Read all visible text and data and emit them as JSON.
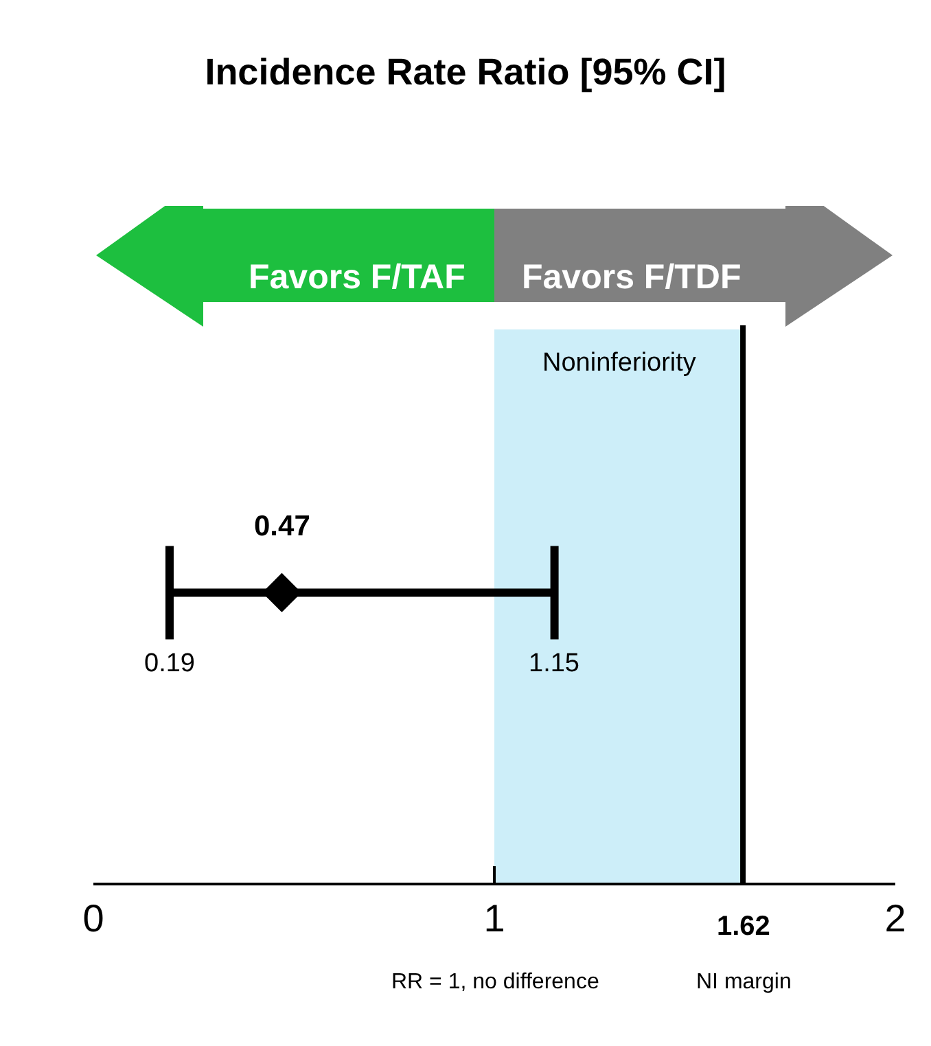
{
  "chart_data": {
    "type": "scatter",
    "title": "Incidence Rate Ratio [95% CI]",
    "orientation": "horizontal",
    "categories": [
      null
    ],
    "values": [
      0.47
    ],
    "color": "#000000",
    "marker": "diamond",
    "errors": [
      [
        0.19,
        1.15
      ]
    ],
    "value_labels": [
      "0.47"
    ],
    "xlim": [
      0,
      2
    ],
    "xticks": [
      0,
      1,
      2
    ],
    "tick_labels": "x",
    "grid": false,
    "legend": false,
    "ref_lines": [
      {
        "axis": "x",
        "value": 1.62,
        "label": "1.62",
        "color": "#000000"
      }
    ],
    "bands": [
      {
        "axis": "x",
        "from": 1,
        "to": 1.62,
        "label": "Noninferiority",
        "color": "#cdeef9"
      }
    ],
    "annotations": [
      "0.19",
      "1.15",
      "RR = 1, no difference",
      "NI margin",
      "Favors F/TAF",
      "Favors F/TDF"
    ]
  }
}
